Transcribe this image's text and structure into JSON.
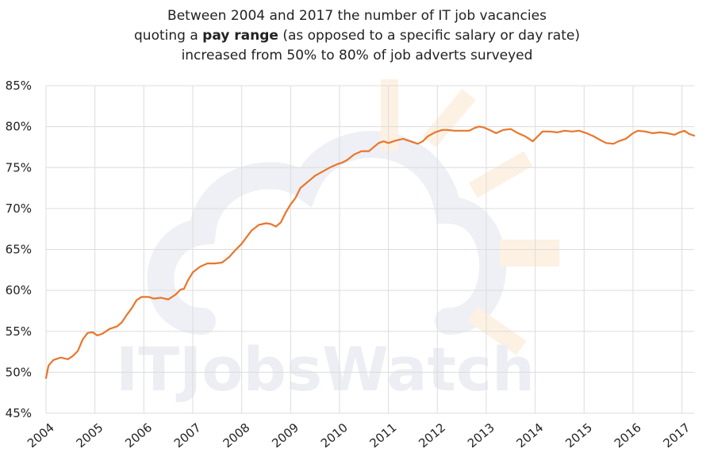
{
  "chart_data": {
    "type": "line",
    "title": {
      "line1": "Between 2004 and 2017 the number of IT job vacancies",
      "line2_pre": "quoting a ",
      "line2_bold": "pay range",
      "line2_post": " (as opposed to a specific salary or day rate)",
      "line3": "increased from 50% to 80% of job adverts surveyed"
    },
    "watermark": "ITJobsWatch",
    "xlabel": "",
    "ylabel": "",
    "x_ticks": [
      "2004",
      "2005",
      "2006",
      "2007",
      "2008",
      "2009",
      "2010",
      "2011",
      "2012",
      "2013",
      "2014",
      "2015",
      "2016",
      "2017"
    ],
    "y_ticks": [
      "45%",
      "50%",
      "55%",
      "60%",
      "65%",
      "70%",
      "75%",
      "80%",
      "85%"
    ],
    "ylim": [
      45,
      85
    ],
    "xlim": [
      2004.0,
      2017.25
    ],
    "grid": true,
    "line_color": "#e8762c",
    "series": [
      {
        "points": [
          [
            2004.0,
            49.3
          ],
          [
            2004.05,
            50.8
          ],
          [
            2004.15,
            51.5
          ],
          [
            2004.3,
            51.8
          ],
          [
            2004.45,
            51.6
          ],
          [
            2004.55,
            52.0
          ],
          [
            2004.65,
            52.6
          ],
          [
            2004.75,
            54.0
          ],
          [
            2004.85,
            54.8
          ],
          [
            2004.95,
            54.9
          ],
          [
            2005.05,
            54.5
          ],
          [
            2005.15,
            54.7
          ],
          [
            2005.3,
            55.3
          ],
          [
            2005.45,
            55.6
          ],
          [
            2005.55,
            56.1
          ],
          [
            2005.65,
            57.0
          ],
          [
            2005.75,
            57.8
          ],
          [
            2005.85,
            58.8
          ],
          [
            2005.95,
            59.2
          ],
          [
            2006.1,
            59.2
          ],
          [
            2006.2,
            59.0
          ],
          [
            2006.35,
            59.1
          ],
          [
            2006.5,
            58.9
          ],
          [
            2006.65,
            59.5
          ],
          [
            2006.75,
            60.1
          ],
          [
            2006.82,
            60.2
          ],
          [
            2006.9,
            61.2
          ],
          [
            2007.0,
            62.2
          ],
          [
            2007.15,
            62.9
          ],
          [
            2007.3,
            63.3
          ],
          [
            2007.45,
            63.3
          ],
          [
            2007.6,
            63.4
          ],
          [
            2007.75,
            64.1
          ],
          [
            2007.85,
            64.8
          ],
          [
            2008.0,
            65.7
          ],
          [
            2008.1,
            66.5
          ],
          [
            2008.2,
            67.3
          ],
          [
            2008.35,
            68.0
          ],
          [
            2008.5,
            68.2
          ],
          [
            2008.6,
            68.1
          ],
          [
            2008.7,
            67.8
          ],
          [
            2008.8,
            68.3
          ],
          [
            2008.9,
            69.5
          ],
          [
            2009.0,
            70.5
          ],
          [
            2009.1,
            71.3
          ],
          [
            2009.2,
            72.5
          ],
          [
            2009.3,
            73.0
          ],
          [
            2009.4,
            73.5
          ],
          [
            2009.5,
            74.0
          ],
          [
            2009.65,
            74.5
          ],
          [
            2009.8,
            75.0
          ],
          [
            2009.95,
            75.4
          ],
          [
            2010.05,
            75.6
          ],
          [
            2010.15,
            75.9
          ],
          [
            2010.3,
            76.6
          ],
          [
            2010.45,
            77.0
          ],
          [
            2010.6,
            77.0
          ],
          [
            2010.7,
            77.5
          ],
          [
            2010.8,
            78.0
          ],
          [
            2010.9,
            78.2
          ],
          [
            2011.0,
            78.0
          ],
          [
            2011.15,
            78.3
          ],
          [
            2011.3,
            78.5
          ],
          [
            2011.45,
            78.2
          ],
          [
            2011.6,
            77.9
          ],
          [
            2011.7,
            78.2
          ],
          [
            2011.8,
            78.8
          ],
          [
            2011.95,
            79.3
          ],
          [
            2012.1,
            79.6
          ],
          [
            2012.2,
            79.6
          ],
          [
            2012.35,
            79.5
          ],
          [
            2012.5,
            79.5
          ],
          [
            2012.65,
            79.5
          ],
          [
            2012.75,
            79.8
          ],
          [
            2012.85,
            80.0
          ],
          [
            2012.95,
            79.9
          ],
          [
            2013.1,
            79.5
          ],
          [
            2013.2,
            79.2
          ],
          [
            2013.35,
            79.6
          ],
          [
            2013.5,
            79.7
          ],
          [
            2013.65,
            79.2
          ],
          [
            2013.8,
            78.8
          ],
          [
            2013.95,
            78.2
          ],
          [
            2014.05,
            78.8
          ],
          [
            2014.15,
            79.4
          ],
          [
            2014.3,
            79.4
          ],
          [
            2014.45,
            79.3
          ],
          [
            2014.6,
            79.5
          ],
          [
            2014.75,
            79.4
          ],
          [
            2014.9,
            79.5
          ],
          [
            2015.05,
            79.2
          ],
          [
            2015.2,
            78.8
          ],
          [
            2015.35,
            78.3
          ],
          [
            2015.45,
            78.0
          ],
          [
            2015.6,
            77.9
          ],
          [
            2015.7,
            78.2
          ],
          [
            2015.85,
            78.5
          ],
          [
            2016.0,
            79.2
          ],
          [
            2016.1,
            79.5
          ],
          [
            2016.25,
            79.4
          ],
          [
            2016.4,
            79.2
          ],
          [
            2016.55,
            79.3
          ],
          [
            2016.7,
            79.2
          ],
          [
            2016.85,
            79.0
          ],
          [
            2016.95,
            79.3
          ],
          [
            2017.05,
            79.5
          ],
          [
            2017.15,
            79.1
          ],
          [
            2017.25,
            78.9
          ]
        ]
      }
    ]
  }
}
